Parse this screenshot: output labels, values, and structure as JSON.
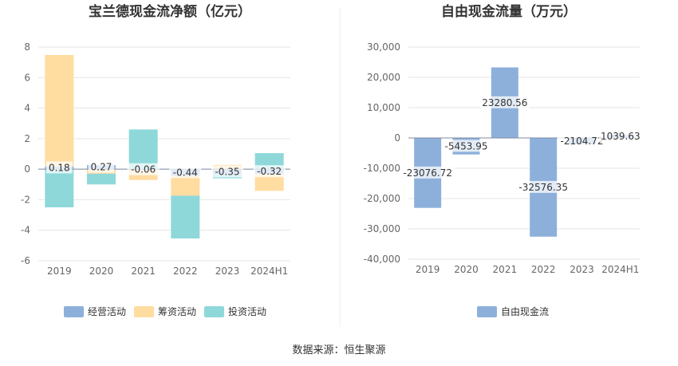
{
  "source_note": "数据来源：恒生聚源",
  "chart_data": [
    {
      "type": "bar",
      "stacked": true,
      "title": "宝兰德现金流净额（亿元）",
      "categories": [
        "2019",
        "2020",
        "2021",
        "2022",
        "2023",
        "2024H1"
      ],
      "ylim": [
        -6,
        8
      ],
      "yticks": [
        "-6",
        "-4",
        "-2",
        "0",
        "2",
        "4",
        "6",
        "8"
      ],
      "grid": true,
      "legend": "bottom",
      "series": [
        {
          "name": "经营活动",
          "color": "#8DB0DB",
          "values": [
            0.18,
            0.27,
            -0.06,
            -0.44,
            -0.35,
            -0.32
          ]
        },
        {
          "name": "筹资活动",
          "color": "#FFDCA0",
          "values": [
            7.3,
            -0.3,
            -0.65,
            -1.3,
            0.28,
            -1.1
          ]
        },
        {
          "name": "投资活动",
          "color": "#8ED8DA",
          "values": [
            -2.5,
            -0.7,
            2.6,
            -2.8,
            -0.25,
            1.05
          ]
        }
      ],
      "data_labels": [
        "0.18",
        "0.27",
        "-0.06",
        "-0.44",
        "-0.35",
        "-0.32"
      ]
    },
    {
      "type": "bar",
      "title": "自由现金流量（万元）",
      "categories": [
        "2019",
        "2020",
        "2021",
        "2022",
        "2023",
        "2024H1"
      ],
      "ylim": [
        -40000,
        30000
      ],
      "yticks": [
        "-40,000",
        "-30,000",
        "-20,000",
        "-10,000",
        "0",
        "10,000",
        "20,000",
        "30,000"
      ],
      "grid": true,
      "legend": "bottom",
      "series": [
        {
          "name": "自由现金流",
          "color": "#8DB0DB",
          "values": [
            -23076.72,
            -5453.95,
            23280.56,
            -32576.35,
            -2104.72,
            1039.63
          ]
        }
      ],
      "data_labels": [
        "-23076.72",
        "-5453.95",
        "23280.56",
        "-32576.35",
        "-2104.72",
        "1039.63"
      ]
    }
  ]
}
